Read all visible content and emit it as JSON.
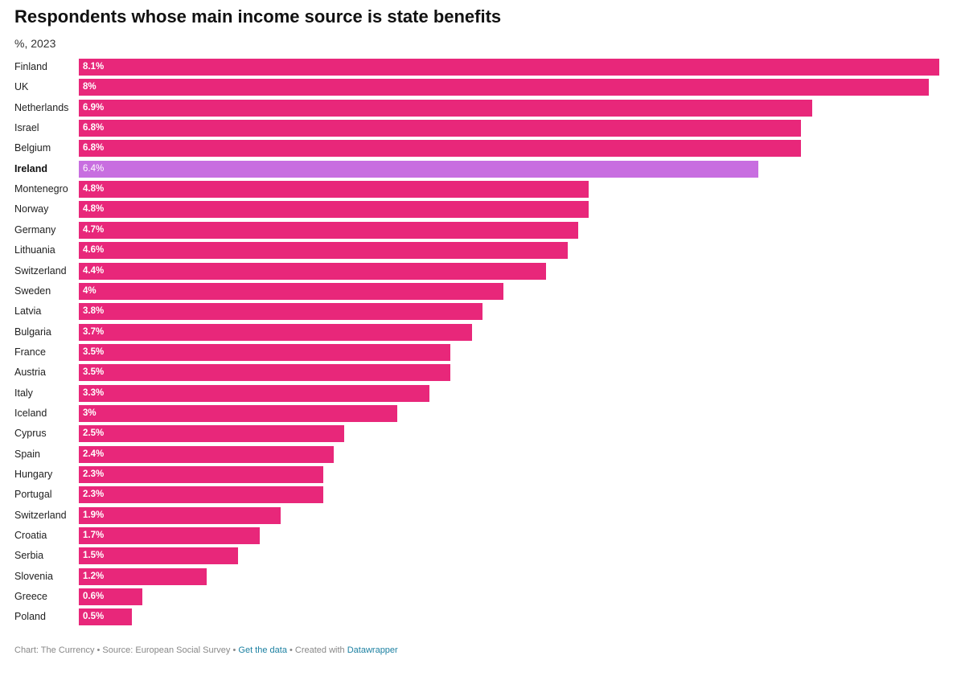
{
  "header": {
    "title": "Respondents whose main income source is state benefits",
    "subtitle": "%, 2023"
  },
  "footer": {
    "credit": "Chart: The Currency",
    "separator": " • ",
    "source": "Source: European Social Survey",
    "get_data_label": "Get the data",
    "created_with": "Created with",
    "tool_label": "Datawrapper"
  },
  "colors": {
    "bar": "#e8277a",
    "highlight_bar": "#c86ee0"
  },
  "chart_data": {
    "type": "bar",
    "orientation": "horizontal",
    "title": "Respondents whose main income source is state benefits",
    "subtitle": "%, 2023",
    "xlabel": "",
    "ylabel": "",
    "xlim": [
      0,
      8.1
    ],
    "grid": false,
    "legend": "none",
    "highlight": "Ireland",
    "categories": [
      "Finland",
      "UK",
      "Netherlands",
      "Israel",
      "Belgium",
      "Ireland",
      "Montenegro",
      "Norway",
      "Germany",
      "Lithuania",
      "Switzerland",
      "Sweden",
      "Latvia",
      "Bulgaria",
      "France",
      "Austria",
      "Italy",
      "Iceland",
      "Cyprus",
      "Spain",
      "Hungary",
      "Portugal",
      "Switzerland",
      "Croatia",
      "Serbia",
      "Slovenia",
      "Greece",
      "Poland"
    ],
    "values": [
      8.1,
      8,
      6.9,
      6.8,
      6.8,
      6.4,
      4.8,
      4.8,
      4.7,
      4.6,
      4.4,
      4,
      3.8,
      3.7,
      3.5,
      3.5,
      3.3,
      3,
      2.5,
      2.4,
      2.3,
      2.3,
      1.9,
      1.7,
      1.5,
      1.2,
      0.6,
      0.5
    ],
    "value_labels": [
      "8.1%",
      "8%",
      "6.9%",
      "6.8%",
      "6.8%",
      "6.4%",
      "4.8%",
      "4.8%",
      "4.7%",
      "4.6%",
      "4.4%",
      "4%",
      "3.8%",
      "3.7%",
      "3.5%",
      "3.5%",
      "3.3%",
      "3%",
      "2.5%",
      "2.4%",
      "2.3%",
      "2.3%",
      "1.9%",
      "1.7%",
      "1.5%",
      "1.2%",
      "0.6%",
      "0.5%"
    ]
  }
}
